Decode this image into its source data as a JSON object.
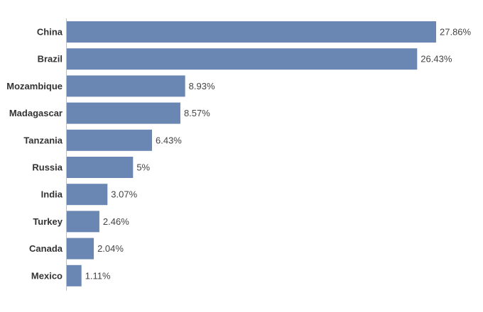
{
  "chart_data": {
    "type": "bar",
    "orientation": "horizontal",
    "categories": [
      "China",
      "Brazil",
      "Mozambique",
      "Madagascar",
      "Tanzania",
      "Russia",
      "India",
      "Turkey",
      "Canada",
      "Mexico"
    ],
    "values": [
      27.86,
      26.43,
      8.93,
      8.57,
      6.43,
      5,
      3.07,
      2.46,
      2.04,
      1.11
    ],
    "value_labels": [
      "27.86%",
      "26.43%",
      "8.93%",
      "8.57%",
      "6.43%",
      "5%",
      "3.07%",
      "2.46%",
      "2.04%",
      "1.11%"
    ],
    "title": "",
    "xlabel": "",
    "ylabel": "",
    "xlim": [
      0,
      27.86
    ],
    "grid": false,
    "bar_color": "#6a87b3"
  }
}
